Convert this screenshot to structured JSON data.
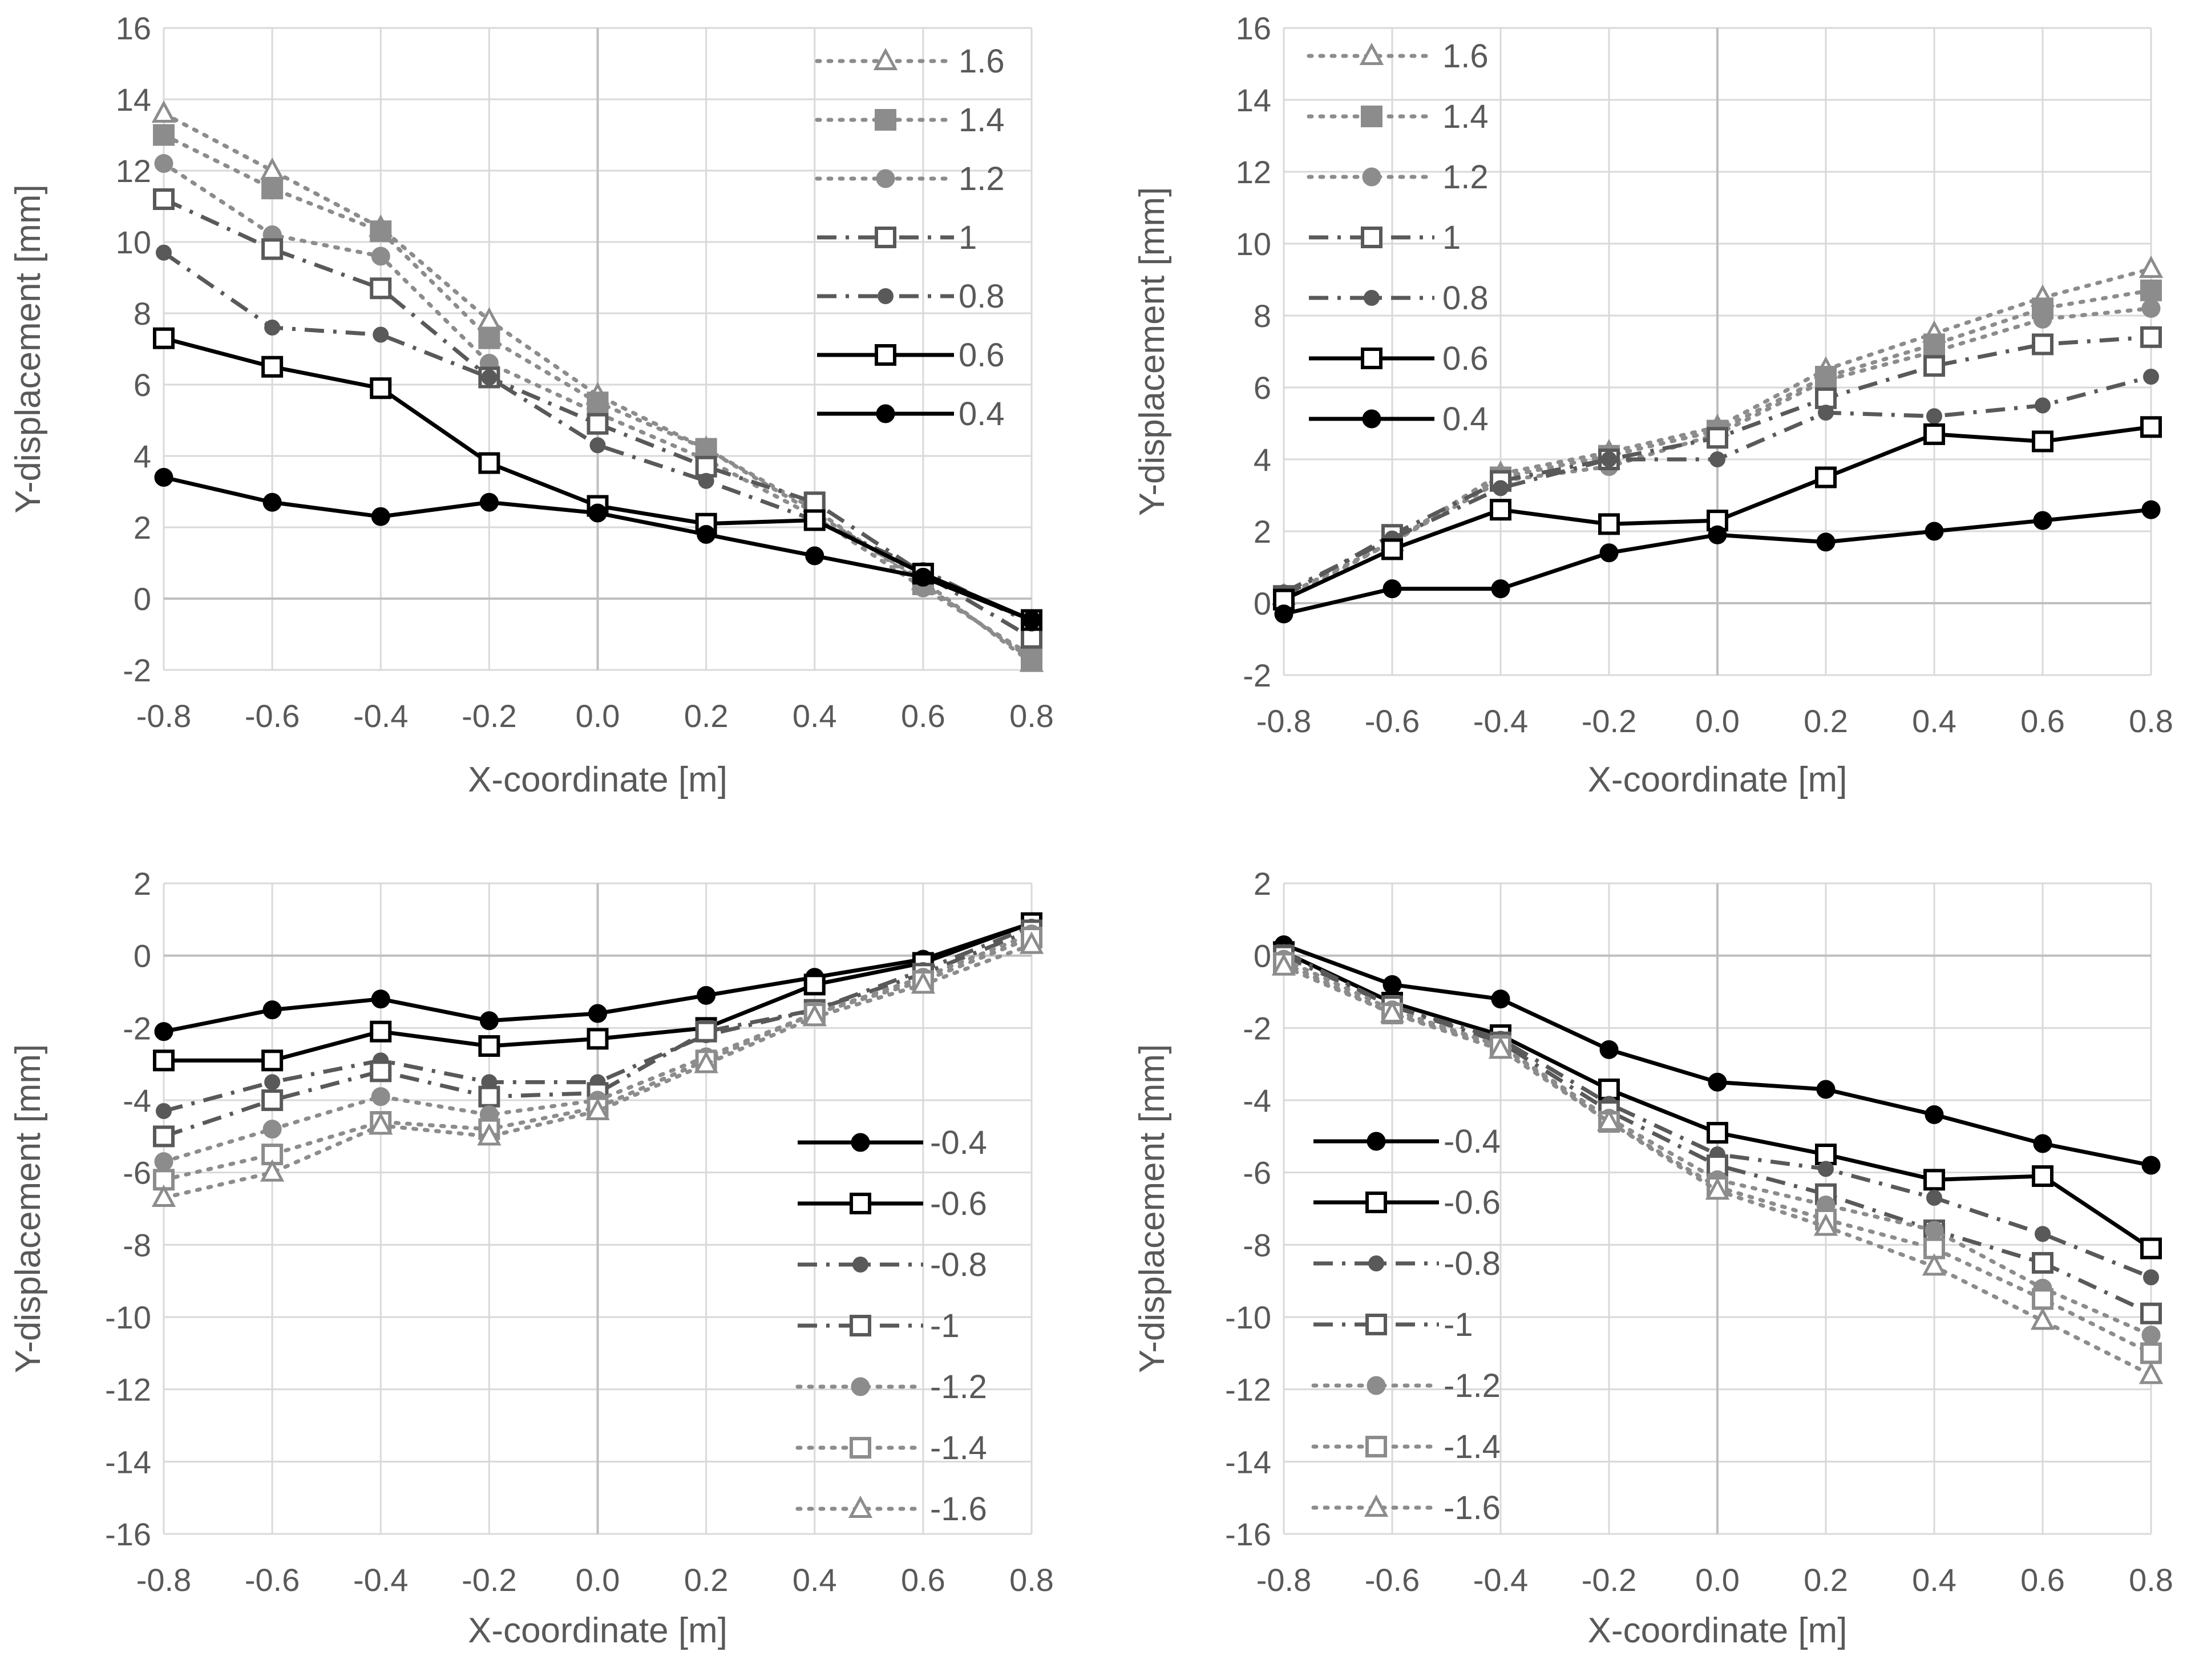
{
  "chart_data": [
    {
      "type": "line",
      "position": "top-left",
      "xlabel": "X-coordinate [m]",
      "ylabel": "Y-displacement [mm]",
      "x": [
        -0.8,
        -0.6,
        -0.4,
        -0.2,
        0.0,
        0.2,
        0.4,
        0.6,
        0.8
      ],
      "x_tick_labels": [
        "-0.8",
        "-0.6",
        "-0.4",
        "-0.2",
        "0.0",
        "0.2",
        "0.4",
        "0.6",
        "0.8"
      ],
      "ylim": [
        -2,
        16
      ],
      "y_ticks": [
        -2,
        0,
        2,
        4,
        6,
        8,
        10,
        12,
        14,
        16
      ],
      "legend_position": "top-right",
      "series": [
        {
          "name": "1.6",
          "style": "tri-dot",
          "values": [
            13.6,
            12.0,
            10.4,
            7.8,
            5.7,
            4.2,
            2.4,
            0.5,
            -1.8
          ]
        },
        {
          "name": "1.4",
          "style": "sqfill-dot",
          "values": [
            13.0,
            11.5,
            10.3,
            7.3,
            5.5,
            4.2,
            2.5,
            0.4,
            -1.7
          ]
        },
        {
          "name": "1.2",
          "style": "circ-dot",
          "values": [
            12.2,
            10.2,
            9.6,
            6.6,
            5.2,
            3.9,
            2.3,
            0.3,
            -1.6
          ]
        },
        {
          "name": "1",
          "style": "sqopen-dashdot",
          "values": [
            11.2,
            9.8,
            8.7,
            6.2,
            4.9,
            3.7,
            2.7,
            0.7,
            -1.1
          ]
        },
        {
          "name": "0.8",
          "style": "circsmall-dashdot",
          "values": [
            9.7,
            7.6,
            7.4,
            6.2,
            4.3,
            3.3,
            2.2,
            0.8,
            -0.7
          ]
        },
        {
          "name": "0.6",
          "style": "sqopen-solid",
          "values": [
            7.3,
            6.5,
            5.9,
            3.8,
            2.6,
            2.1,
            2.2,
            0.7,
            -0.6
          ]
        },
        {
          "name": "0.4",
          "style": "circ-solid",
          "values": [
            3.4,
            2.7,
            2.3,
            2.7,
            2.4,
            1.8,
            1.2,
            0.6,
            -0.6
          ]
        }
      ]
    },
    {
      "type": "line",
      "position": "top-right",
      "xlabel": "X-coordinate [m]",
      "ylabel": "Y-displacement [mm]",
      "x": [
        -0.8,
        -0.6,
        -0.4,
        -0.2,
        0.0,
        0.2,
        0.4,
        0.6,
        0.8
      ],
      "x_tick_labels": [
        "-0.8",
        "-0.6",
        "-0.4",
        "-0.2",
        "0.0",
        "0.2",
        "0.4",
        "0.6",
        "0.8"
      ],
      "ylim": [
        -2,
        16
      ],
      "y_ticks": [
        -2,
        0,
        2,
        4,
        6,
        8,
        10,
        12,
        14,
        16
      ],
      "legend_position": "top-left",
      "series": [
        {
          "name": "1.6",
          "style": "tri-dot",
          "values": [
            0.2,
            1.7,
            3.6,
            4.2,
            4.9,
            6.5,
            7.5,
            8.5,
            9.3
          ]
        },
        {
          "name": "1.4",
          "style": "sqfill-dot",
          "values": [
            0.2,
            1.7,
            3.5,
            4.1,
            4.8,
            6.3,
            7.2,
            8.2,
            8.7
          ]
        },
        {
          "name": "1.2",
          "style": "circ-dot",
          "values": [
            0.1,
            1.7,
            3.4,
            3.8,
            4.7,
            6.2,
            7.0,
            7.9,
            8.2
          ]
        },
        {
          "name": "1",
          "style": "sqopen-dashdot",
          "values": [
            0.2,
            1.9,
            3.4,
            4.0,
            4.6,
            5.7,
            6.6,
            7.2,
            7.4
          ]
        },
        {
          "name": "0.8",
          "style": "circsmall-dashdot",
          "values": [
            0.3,
            1.8,
            3.2,
            4.0,
            4.0,
            5.3,
            5.2,
            5.5,
            6.3
          ]
        },
        {
          "name": "0.6",
          "style": "sqopen-solid",
          "values": [
            0.1,
            1.5,
            2.6,
            2.2,
            2.3,
            3.5,
            4.7,
            4.5,
            4.9
          ]
        },
        {
          "name": "0.4",
          "style": "circ-solid",
          "values": [
            -0.3,
            0.4,
            0.4,
            1.4,
            1.9,
            1.7,
            2.0,
            2.3,
            2.6
          ]
        }
      ]
    },
    {
      "type": "line",
      "position": "bottom-left",
      "xlabel": "X-coordinate [m]",
      "ylabel": "Y-displacement [mm]",
      "x": [
        -0.8,
        -0.6,
        -0.4,
        -0.2,
        0.0,
        0.2,
        0.4,
        0.6,
        0.8
      ],
      "x_tick_labels": [
        "-0.8",
        "-0.6",
        "-0.4",
        "-0.2",
        "0.0",
        "0.2",
        "0.4",
        "0.6",
        "0.8"
      ],
      "ylim": [
        -16,
        2
      ],
      "y_ticks": [
        -16,
        -14,
        -12,
        -10,
        -8,
        -6,
        -4,
        -2,
        0,
        2
      ],
      "legend_position": "bottom-right",
      "series": [
        {
          "name": "-0.4",
          "style": "circ-solid",
          "values": [
            -2.1,
            -1.5,
            -1.2,
            -1.8,
            -1.6,
            -1.1,
            -0.6,
            -0.1,
            0.9
          ]
        },
        {
          "name": "-0.6",
          "style": "sqopen-solid",
          "values": [
            -2.9,
            -2.9,
            -2.1,
            -2.5,
            -2.3,
            -2.0,
            -0.8,
            -0.2,
            0.9
          ]
        },
        {
          "name": "-0.8",
          "style": "circsmall-dashdot",
          "values": [
            -4.3,
            -3.5,
            -2.9,
            -3.5,
            -3.5,
            -2.2,
            -1.5,
            -0.4,
            0.8
          ]
        },
        {
          "name": "-1",
          "style": "sqopen-dashdot",
          "values": [
            -5.0,
            -4.0,
            -3.2,
            -3.9,
            -3.8,
            -2.1,
            -1.5,
            -0.5,
            0.7
          ]
        },
        {
          "name": "-1.2",
          "style": "circ-dot",
          "values": [
            -5.7,
            -4.8,
            -3.9,
            -4.4,
            -4.0,
            -2.8,
            -1.6,
            -0.6,
            0.6
          ]
        },
        {
          "name": "-1.4",
          "style": "sqopen-dot",
          "values": [
            -6.2,
            -5.5,
            -4.6,
            -4.8,
            -4.2,
            -2.9,
            -1.6,
            -0.7,
            0.5
          ]
        },
        {
          "name": "-1.6",
          "style": "tri-dot",
          "values": [
            -6.7,
            -6.0,
            -4.7,
            -5.0,
            -4.3,
            -3.0,
            -1.7,
            -0.8,
            0.3
          ]
        }
      ]
    },
    {
      "type": "line",
      "position": "bottom-right",
      "xlabel": "X-coordinate [m]",
      "ylabel": "Y-displacement [mm]",
      "x": [
        -0.8,
        -0.6,
        -0.4,
        -0.2,
        0.0,
        0.2,
        0.4,
        0.6,
        0.8
      ],
      "x_tick_labels": [
        "-0.8",
        "-0.6",
        "-0.4",
        "-0.2",
        "0.0",
        "0.2",
        "0.4",
        "0.6",
        "0.8"
      ],
      "ylim": [
        -16,
        2
      ],
      "y_ticks": [
        -16,
        -14,
        -12,
        -10,
        -8,
        -6,
        -4,
        -2,
        0,
        2
      ],
      "legend_position": "bottom-left",
      "series": [
        {
          "name": "-0.4",
          "style": "circ-solid",
          "values": [
            0.3,
            -0.8,
            -1.2,
            -2.6,
            -3.5,
            -3.7,
            -4.4,
            -5.2,
            -5.8
          ]
        },
        {
          "name": "-0.6",
          "style": "sqopen-solid",
          "values": [
            0.1,
            -1.3,
            -2.2,
            -3.7,
            -4.9,
            -5.5,
            -6.2,
            -6.1,
            -8.1
          ]
        },
        {
          "name": "-0.8",
          "style": "circsmall-dashdot",
          "values": [
            0.1,
            -1.4,
            -2.3,
            -4.1,
            -5.5,
            -5.9,
            -6.7,
            -7.7,
            -8.9
          ]
        },
        {
          "name": "-1",
          "style": "sqopen-dashdot",
          "values": [
            0.0,
            -1.4,
            -2.4,
            -4.3,
            -5.8,
            -6.6,
            -7.6,
            -8.5,
            -9.9
          ]
        },
        {
          "name": "-1.2",
          "style": "circ-dot",
          "values": [
            -0.1,
            -1.5,
            -2.5,
            -4.5,
            -6.2,
            -6.9,
            -7.6,
            -9.2,
            -10.5
          ]
        },
        {
          "name": "-1.4",
          "style": "sqopen-dot",
          "values": [
            -0.2,
            -1.6,
            -2.5,
            -4.6,
            -6.4,
            -7.3,
            -8.1,
            -9.5,
            -11.0
          ]
        },
        {
          "name": "-1.6",
          "style": "tri-dot",
          "values": [
            -0.3,
            -1.6,
            -2.6,
            -4.6,
            -6.5,
            -7.5,
            -8.6,
            -10.1,
            -11.6
          ]
        }
      ]
    }
  ]
}
